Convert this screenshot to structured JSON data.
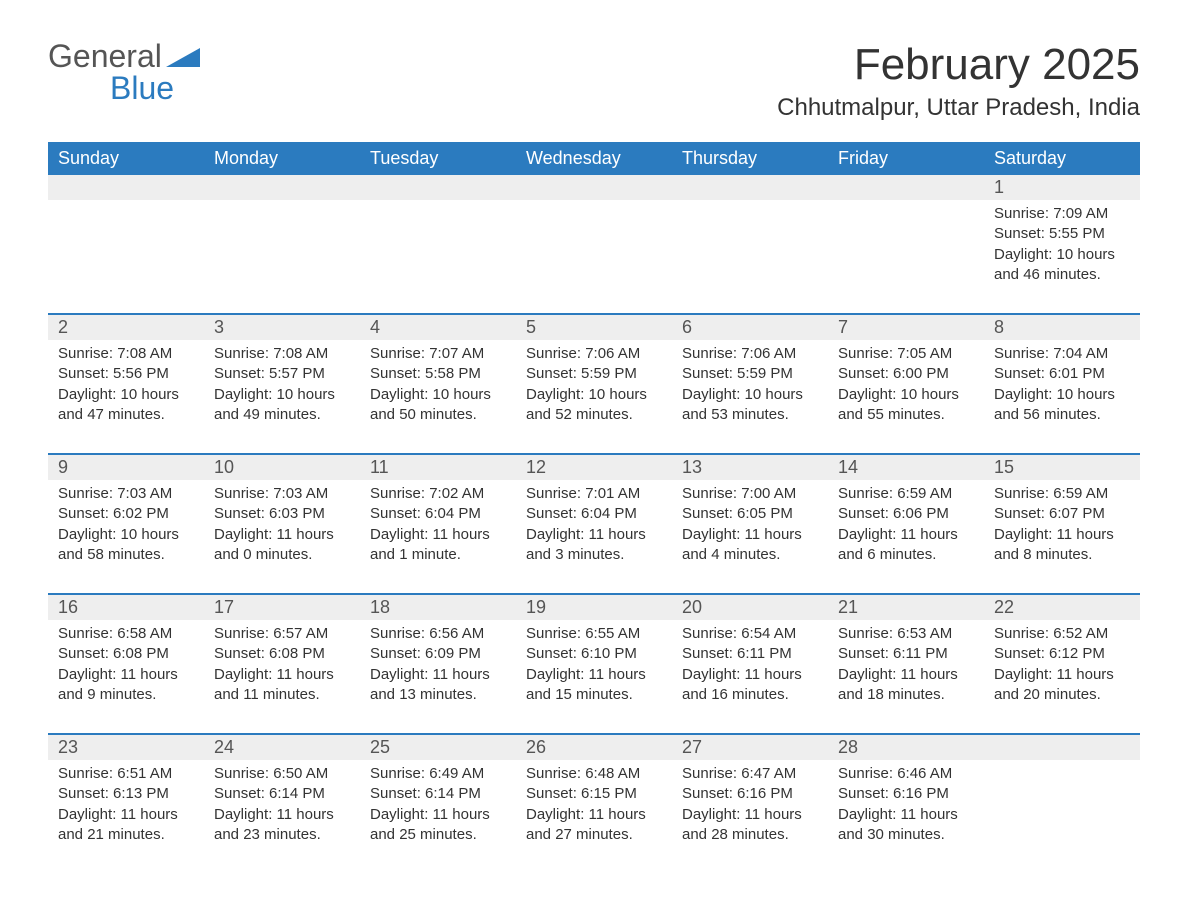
{
  "logo": {
    "part1": "General",
    "part2": "Blue"
  },
  "title": "February 2025",
  "location": "Chhutmalpur, Uttar Pradesh, India",
  "colors": {
    "header_bg": "#2b7bbf",
    "header_text": "#ffffff",
    "daynum_bg": "#eeeeee",
    "text": "#333333",
    "logo_gray": "#555555",
    "logo_blue": "#2b7bbf",
    "background": "#ffffff"
  },
  "day_headers": [
    "Sunday",
    "Monday",
    "Tuesday",
    "Wednesday",
    "Thursday",
    "Friday",
    "Saturday"
  ],
  "weeks": [
    {
      "days": [
        null,
        null,
        null,
        null,
        null,
        null,
        {
          "n": "1",
          "sunrise": "Sunrise: 7:09 AM",
          "sunset": "Sunset: 5:55 PM",
          "daylight": "Daylight: 10 hours and 46 minutes."
        }
      ]
    },
    {
      "days": [
        {
          "n": "2",
          "sunrise": "Sunrise: 7:08 AM",
          "sunset": "Sunset: 5:56 PM",
          "daylight": "Daylight: 10 hours and 47 minutes."
        },
        {
          "n": "3",
          "sunrise": "Sunrise: 7:08 AM",
          "sunset": "Sunset: 5:57 PM",
          "daylight": "Daylight: 10 hours and 49 minutes."
        },
        {
          "n": "4",
          "sunrise": "Sunrise: 7:07 AM",
          "sunset": "Sunset: 5:58 PM",
          "daylight": "Daylight: 10 hours and 50 minutes."
        },
        {
          "n": "5",
          "sunrise": "Sunrise: 7:06 AM",
          "sunset": "Sunset: 5:59 PM",
          "daylight": "Daylight: 10 hours and 52 minutes."
        },
        {
          "n": "6",
          "sunrise": "Sunrise: 7:06 AM",
          "sunset": "Sunset: 5:59 PM",
          "daylight": "Daylight: 10 hours and 53 minutes."
        },
        {
          "n": "7",
          "sunrise": "Sunrise: 7:05 AM",
          "sunset": "Sunset: 6:00 PM",
          "daylight": "Daylight: 10 hours and 55 minutes."
        },
        {
          "n": "8",
          "sunrise": "Sunrise: 7:04 AM",
          "sunset": "Sunset: 6:01 PM",
          "daylight": "Daylight: 10 hours and 56 minutes."
        }
      ]
    },
    {
      "days": [
        {
          "n": "9",
          "sunrise": "Sunrise: 7:03 AM",
          "sunset": "Sunset: 6:02 PM",
          "daylight": "Daylight: 10 hours and 58 minutes."
        },
        {
          "n": "10",
          "sunrise": "Sunrise: 7:03 AM",
          "sunset": "Sunset: 6:03 PM",
          "daylight": "Daylight: 11 hours and 0 minutes."
        },
        {
          "n": "11",
          "sunrise": "Sunrise: 7:02 AM",
          "sunset": "Sunset: 6:04 PM",
          "daylight": "Daylight: 11 hours and 1 minute."
        },
        {
          "n": "12",
          "sunrise": "Sunrise: 7:01 AM",
          "sunset": "Sunset: 6:04 PM",
          "daylight": "Daylight: 11 hours and 3 minutes."
        },
        {
          "n": "13",
          "sunrise": "Sunrise: 7:00 AM",
          "sunset": "Sunset: 6:05 PM",
          "daylight": "Daylight: 11 hours and 4 minutes."
        },
        {
          "n": "14",
          "sunrise": "Sunrise: 6:59 AM",
          "sunset": "Sunset: 6:06 PM",
          "daylight": "Daylight: 11 hours and 6 minutes."
        },
        {
          "n": "15",
          "sunrise": "Sunrise: 6:59 AM",
          "sunset": "Sunset: 6:07 PM",
          "daylight": "Daylight: 11 hours and 8 minutes."
        }
      ]
    },
    {
      "days": [
        {
          "n": "16",
          "sunrise": "Sunrise: 6:58 AM",
          "sunset": "Sunset: 6:08 PM",
          "daylight": "Daylight: 11 hours and 9 minutes."
        },
        {
          "n": "17",
          "sunrise": "Sunrise: 6:57 AM",
          "sunset": "Sunset: 6:08 PM",
          "daylight": "Daylight: 11 hours and 11 minutes."
        },
        {
          "n": "18",
          "sunrise": "Sunrise: 6:56 AM",
          "sunset": "Sunset: 6:09 PM",
          "daylight": "Daylight: 11 hours and 13 minutes."
        },
        {
          "n": "19",
          "sunrise": "Sunrise: 6:55 AM",
          "sunset": "Sunset: 6:10 PM",
          "daylight": "Daylight: 11 hours and 15 minutes."
        },
        {
          "n": "20",
          "sunrise": "Sunrise: 6:54 AM",
          "sunset": "Sunset: 6:11 PM",
          "daylight": "Daylight: 11 hours and 16 minutes."
        },
        {
          "n": "21",
          "sunrise": "Sunrise: 6:53 AM",
          "sunset": "Sunset: 6:11 PM",
          "daylight": "Daylight: 11 hours and 18 minutes."
        },
        {
          "n": "22",
          "sunrise": "Sunrise: 6:52 AM",
          "sunset": "Sunset: 6:12 PM",
          "daylight": "Daylight: 11 hours and 20 minutes."
        }
      ]
    },
    {
      "days": [
        {
          "n": "23",
          "sunrise": "Sunrise: 6:51 AM",
          "sunset": "Sunset: 6:13 PM",
          "daylight": "Daylight: 11 hours and 21 minutes."
        },
        {
          "n": "24",
          "sunrise": "Sunrise: 6:50 AM",
          "sunset": "Sunset: 6:14 PM",
          "daylight": "Daylight: 11 hours and 23 minutes."
        },
        {
          "n": "25",
          "sunrise": "Sunrise: 6:49 AM",
          "sunset": "Sunset: 6:14 PM",
          "daylight": "Daylight: 11 hours and 25 minutes."
        },
        {
          "n": "26",
          "sunrise": "Sunrise: 6:48 AM",
          "sunset": "Sunset: 6:15 PM",
          "daylight": "Daylight: 11 hours and 27 minutes."
        },
        {
          "n": "27",
          "sunrise": "Sunrise: 6:47 AM",
          "sunset": "Sunset: 6:16 PM",
          "daylight": "Daylight: 11 hours and 28 minutes."
        },
        {
          "n": "28",
          "sunrise": "Sunrise: 6:46 AM",
          "sunset": "Sunset: 6:16 PM",
          "daylight": "Daylight: 11 hours and 30 minutes."
        },
        null
      ]
    }
  ]
}
